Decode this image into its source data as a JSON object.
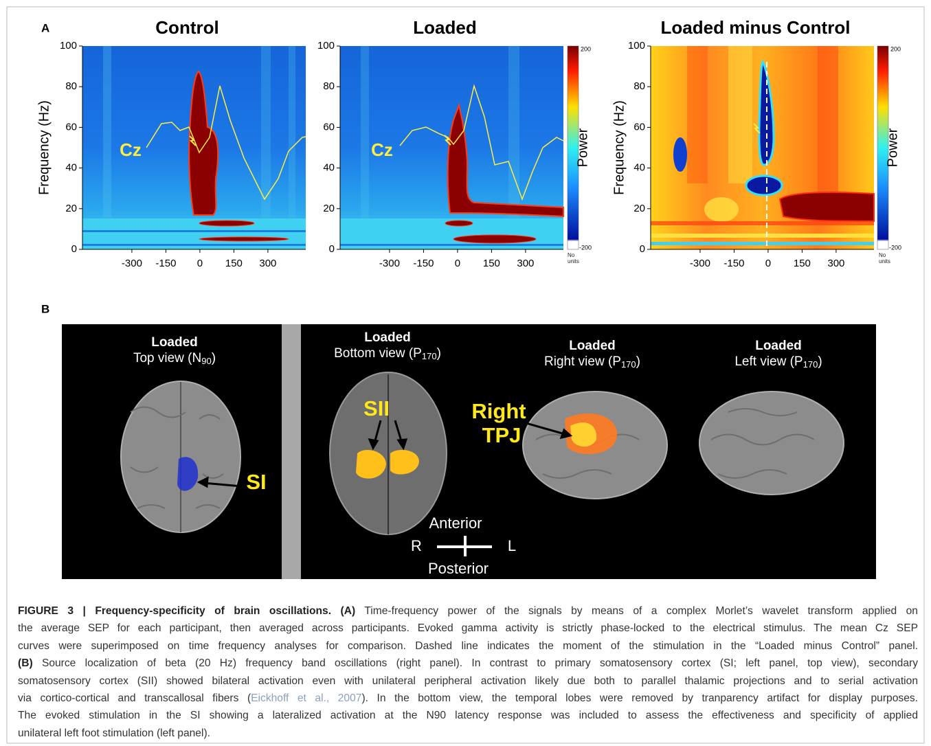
{
  "panel_a": {
    "label": "A",
    "plots": [
      {
        "title": "Control",
        "y_label": "Frequency (Hz)",
        "ylim": [
          0,
          100
        ],
        "yticks": [
          0,
          20,
          40,
          60,
          80,
          100
        ],
        "xlim": [
          -518,
          467
        ],
        "xticks": [
          -300,
          -150,
          0,
          150,
          300
        ],
        "electrode": "Cz"
      },
      {
        "title": "Loaded",
        "ylim": [
          0,
          100
        ],
        "yticks": [
          0,
          20,
          40,
          60,
          80,
          100
        ],
        "xlim": [
          -518,
          467
        ],
        "xticks": [
          -300,
          -150,
          0,
          150,
          300
        ],
        "electrode": "Cz",
        "colorbar": {
          "max": 200,
          "min": -200,
          "unit": "No units",
          "label": "Power"
        }
      },
      {
        "title": "Loaded minus Control",
        "y_label": "Frequency (Hz)",
        "ylim": [
          0,
          100
        ],
        "yticks": [
          0,
          20,
          40,
          60,
          80,
          100
        ],
        "xlim": [
          -518,
          467
        ],
        "xticks": [
          -300,
          -150,
          0,
          150,
          300
        ],
        "colorbar": {
          "max": 200,
          "min": -200,
          "unit": "No units",
          "label": "Power"
        }
      }
    ]
  },
  "panel_b": {
    "label": "B",
    "views": [
      {
        "title": "Loaded",
        "view": "Top view (N",
        "subscript": "90",
        "view_end": ")"
      },
      {
        "title": "Loaded",
        "view": "Bottom view (P",
        "subscript": "170",
        "view_end": ")"
      },
      {
        "title": "Loaded",
        "view": "Right view (P",
        "subscript": "170",
        "view_end": ")"
      },
      {
        "title": "Loaded",
        "view": "Left view (P",
        "subscript": "170",
        "view_end": ")"
      }
    ],
    "annotations": {
      "si": "SI",
      "sii": "SII",
      "tpj": [
        "Right",
        "TPJ"
      ]
    },
    "orientation": {
      "anterior": "Anterior",
      "posterior": "Posterior",
      "right": "R",
      "left": "L"
    }
  },
  "caption": {
    "lines": [
      [
        "FIGURE 3 | Frequency-specificity of brain oscillations.",
        "(A)",
        "Time-frequency power of the signals by means of a complex Morlet’s wavelet transform applied on"
      ],
      [
        "the average SEP for each participant, then averaged across participants. Evoked gamma activity is strictly phase-locked to the electrical stimulus. The mean Cz SEP"
      ],
      [
        "curves were superimposed on time frequency analyses for comparison. Dashed line indicates the moment of the stimulation in the “Loaded minus Control” panel."
      ],
      [
        "(B)",
        "Source localization of beta (20 Hz) frequency band oscillations (right panel). In contrast to primary somatosensory cortex (SI; left panel, top view), secondary"
      ],
      [
        "somatosensory cortex (SII) showed bilateral activation even with unilateral peripheral activation likely due both to parallel thalamic projections and to serial activation"
      ],
      [
        "via cortico-cortical and transcallosal fibers (",
        "Eickhoff et al., 2007",
        "). In the bottom view, the temporal lobes were removed by tranparency artifact for display purposes."
      ],
      [
        "The evoked stimulation in the SI showing a lateralized activation at the N90 latency response was included to assess the effectiveness and specificity of applied"
      ],
      [
        "unilateral left foot stimulation (left panel)."
      ]
    ]
  }
}
